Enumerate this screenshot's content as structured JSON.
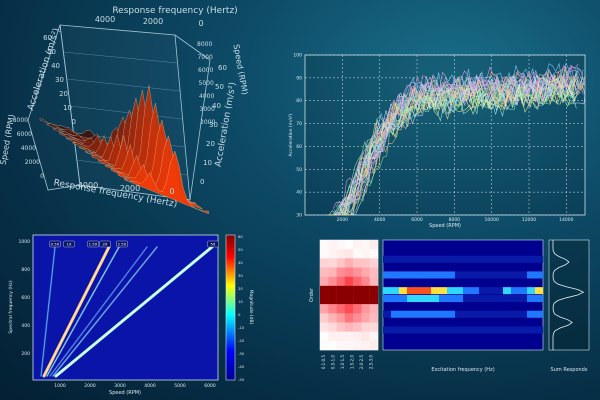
{
  "surface3d": {
    "top_axis_label": "Response frequency (Hertz)",
    "top_ticks": [
      "4000",
      "2000",
      "0"
    ],
    "bottom_axis_label": "Response frequency (Hertz)",
    "bottom_ticks": [
      "4000",
      "2000",
      "0"
    ],
    "left_axis_label": "Acceleration (m/s²)",
    "left_ticks": [
      "60",
      "50",
      "40",
      "30",
      "20",
      "10",
      "0"
    ],
    "right_axis_label": "Acceleration (m/s²)",
    "right_ticks": [
      "60",
      "50",
      "40",
      "30",
      "20",
      "10",
      "0"
    ],
    "left_depth_label": "Speed (RPM)",
    "left_depth_ticks": [
      "8000",
      "6000",
      "4000",
      "2000",
      "0"
    ],
    "right_depth_label": "Speed (RPM)",
    "right_depth_ticks": [
      "8000",
      "7000",
      "6000",
      "5000",
      "4000",
      "3000",
      "2000"
    ]
  },
  "chart_data": [
    {
      "type": "line",
      "panel": "top-right",
      "xlabel": "Speed (RPM)",
      "ylabel": "Acceleration (m/s²)",
      "x_ticks": [
        "2000",
        "4000",
        "6000",
        "8000",
        "10000",
        "12000",
        "14000"
      ],
      "y_ticks": [
        "100",
        "90",
        "80",
        "70",
        "60",
        "50",
        "40",
        "30"
      ],
      "xlim": [
        0,
        15000
      ],
      "ylim": [
        30,
        100
      ],
      "grid": true,
      "series_count": 28,
      "colors": [
        "#ff9be0",
        "#c8b8ff",
        "#9fe89a",
        "#ffe58a",
        "#8fd4ff",
        "#ffb07a",
        "#e0e0ff",
        "#a0ffd8"
      ],
      "envelope": {
        "x": [
          1800,
          2600,
          3300,
          4200,
          5000,
          5800,
          6500,
          7500,
          8500,
          9500,
          10500,
          11500,
          12500,
          13500,
          14500
        ],
        "y": [
          30,
          42,
          55,
          70,
          78,
          84,
          86,
          85,
          86,
          88,
          86,
          89,
          87,
          90,
          89
        ]
      }
    },
    {
      "type": "heatmap",
      "panel": "bottom-left",
      "xlabel": "Speed (RPM)",
      "ylabel": "Spectral frequency (Hz)",
      "colorbar_label": "Magnitude (dB)",
      "x_ticks": [
        "1000",
        "2000",
        "3000",
        "4000",
        "5000",
        "6000"
      ],
      "y_ticks": [
        "1000",
        "800",
        "600",
        "400",
        "200"
      ],
      "colorbar_ticks": [
        "60",
        "50",
        "40",
        "30",
        "20",
        "10",
        "0",
        "-10",
        "-20",
        "-30",
        "-40",
        "-50"
      ],
      "order_labels": [
        "0.5X",
        "1X",
        "1.5X",
        "2X",
        "2.5X",
        "5X"
      ],
      "colors": [
        "#7f0000",
        "#ff0000",
        "#ffff00",
        "#00ffff",
        "#0000ff",
        "#00008f"
      ]
    },
    {
      "type": "heatmap",
      "panel": "bottom-right",
      "ylabel": "Order",
      "center_xlabel": "Excitation frequency (Hz)",
      "side_xlabel": "Sum Responds",
      "left_ticks": [
        "0.1-0.5",
        "0.5-1.0",
        "1.0-1.5",
        "1.5-2.0",
        "2.0-2.5",
        "2.5-3.0"
      ],
      "colors": [
        "#000080",
        "#1f6fff",
        "#2fd0ff",
        "#ffff40",
        "#ff7020",
        "#a00000"
      ]
    }
  ]
}
